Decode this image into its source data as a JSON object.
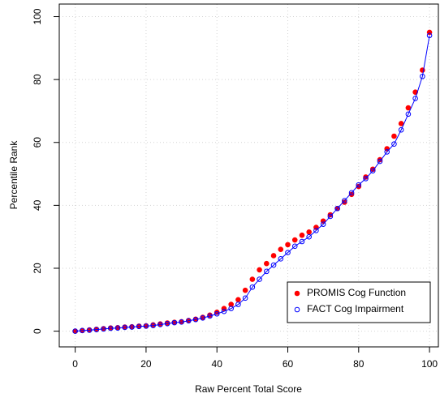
{
  "chart_data": {
    "type": "scatter",
    "x_label": "Raw Percent Total Score",
    "y_label": "Percentile Rank",
    "x": [
      0,
      2,
      4,
      6,
      8,
      10,
      12,
      14,
      16,
      18,
      20,
      22,
      24,
      26,
      28,
      30,
      32,
      34,
      36,
      38,
      40,
      42,
      44,
      46,
      48,
      50,
      52,
      54,
      56,
      58,
      60,
      62,
      64,
      66,
      68,
      70,
      72,
      74,
      76,
      78,
      80,
      82,
      84,
      86,
      88,
      90,
      92,
      94,
      96,
      98,
      100
    ],
    "series": [
      {
        "name": "PROMIS Cog Function",
        "color": "#ff0000",
        "marker": "filled",
        "values": [
          0,
          0.2,
          0.4,
          0.6,
          0.8,
          1.0,
          1.1,
          1.3,
          1.4,
          1.6,
          1.7,
          2.0,
          2.3,
          2.6,
          2.8,
          3.0,
          3.4,
          3.8,
          4.4,
          5.1,
          6.0,
          7.2,
          8.5,
          10.0,
          13.0,
          16.5,
          19.5,
          21.5,
          24,
          26,
          27.5,
          29,
          30.5,
          31.5,
          33,
          35,
          37,
          39,
          41,
          43.5,
          46,
          49,
          51.5,
          54.5,
          58,
          62,
          66,
          71,
          76,
          83,
          95
        ]
      },
      {
        "name": "FACT Cog Impairment",
        "color": "#0000ff",
        "marker": "open",
        "line": true,
        "values": [
          0,
          0.2,
          0.3,
          0.5,
          0.7,
          0.9,
          1.0,
          1.2,
          1.3,
          1.5,
          1.6,
          1.8,
          2.1,
          2.4,
          2.7,
          2.9,
          3.3,
          3.7,
          4.2,
          4.8,
          5.5,
          6.3,
          7.2,
          8.5,
          10.5,
          14,
          16.5,
          19,
          21,
          23,
          25,
          27,
          28.5,
          30,
          32,
          34,
          36.5,
          39,
          41.5,
          44,
          46.5,
          48.5,
          51,
          54,
          57,
          59.5,
          64,
          69,
          74,
          81,
          94
        ]
      }
    ],
    "xlim": [
      -4.5,
      102.5
    ],
    "ylim": [
      -5,
      104
    ],
    "xticks": [
      0,
      20,
      40,
      60,
      80,
      100
    ],
    "yticks": [
      0,
      20,
      40,
      60,
      80,
      100
    ],
    "grid": true,
    "legend": "bottomright"
  }
}
